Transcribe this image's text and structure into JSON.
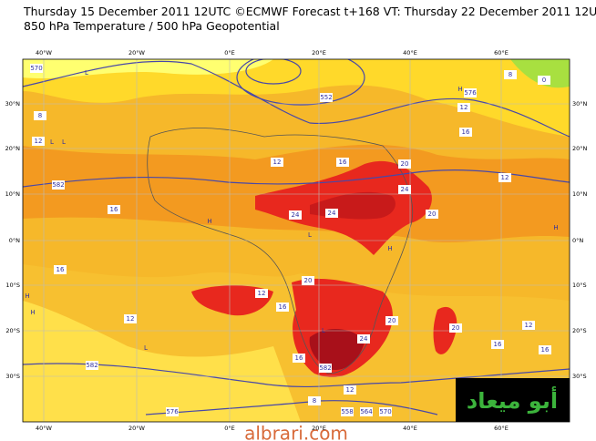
{
  "header": {
    "line1": "Thursday 15 December 2011 12UTC ©ECMWF Forecast t+168 VT: Thursday 22 December 2011 12UTC",
    "line2": "850 hPa Temperature / 500 hPa Geopotential"
  },
  "axes": {
    "longitudes": [
      "40°W",
      "20°W",
      "0°E",
      "20°E",
      "40°E",
      "60°E"
    ],
    "latitudes": [
      "30°N",
      "20°N",
      "10°N",
      "0°N",
      "10°S",
      "20°S",
      "30°S"
    ]
  },
  "contour_labels": [
    "570",
    "8",
    "12",
    "582",
    "16",
    "16",
    "12",
    "582",
    "576",
    "12",
    "16",
    "24",
    "24",
    "24",
    "20",
    "20",
    "16",
    "12",
    "16",
    "24",
    "20",
    "20",
    "582",
    "12",
    "8",
    "558",
    "564",
    "570",
    "576",
    "12",
    "16",
    "12",
    "8",
    "0",
    "12",
    "16",
    "16",
    "552",
    "20"
  ],
  "pressure_marks": [
    "L",
    "L",
    "H",
    "H",
    "L",
    "H",
    "L",
    "H",
    "L",
    "H",
    "L",
    "H"
  ],
  "logo": "أبو ميعاد",
  "watermark": "albrari.com"
}
